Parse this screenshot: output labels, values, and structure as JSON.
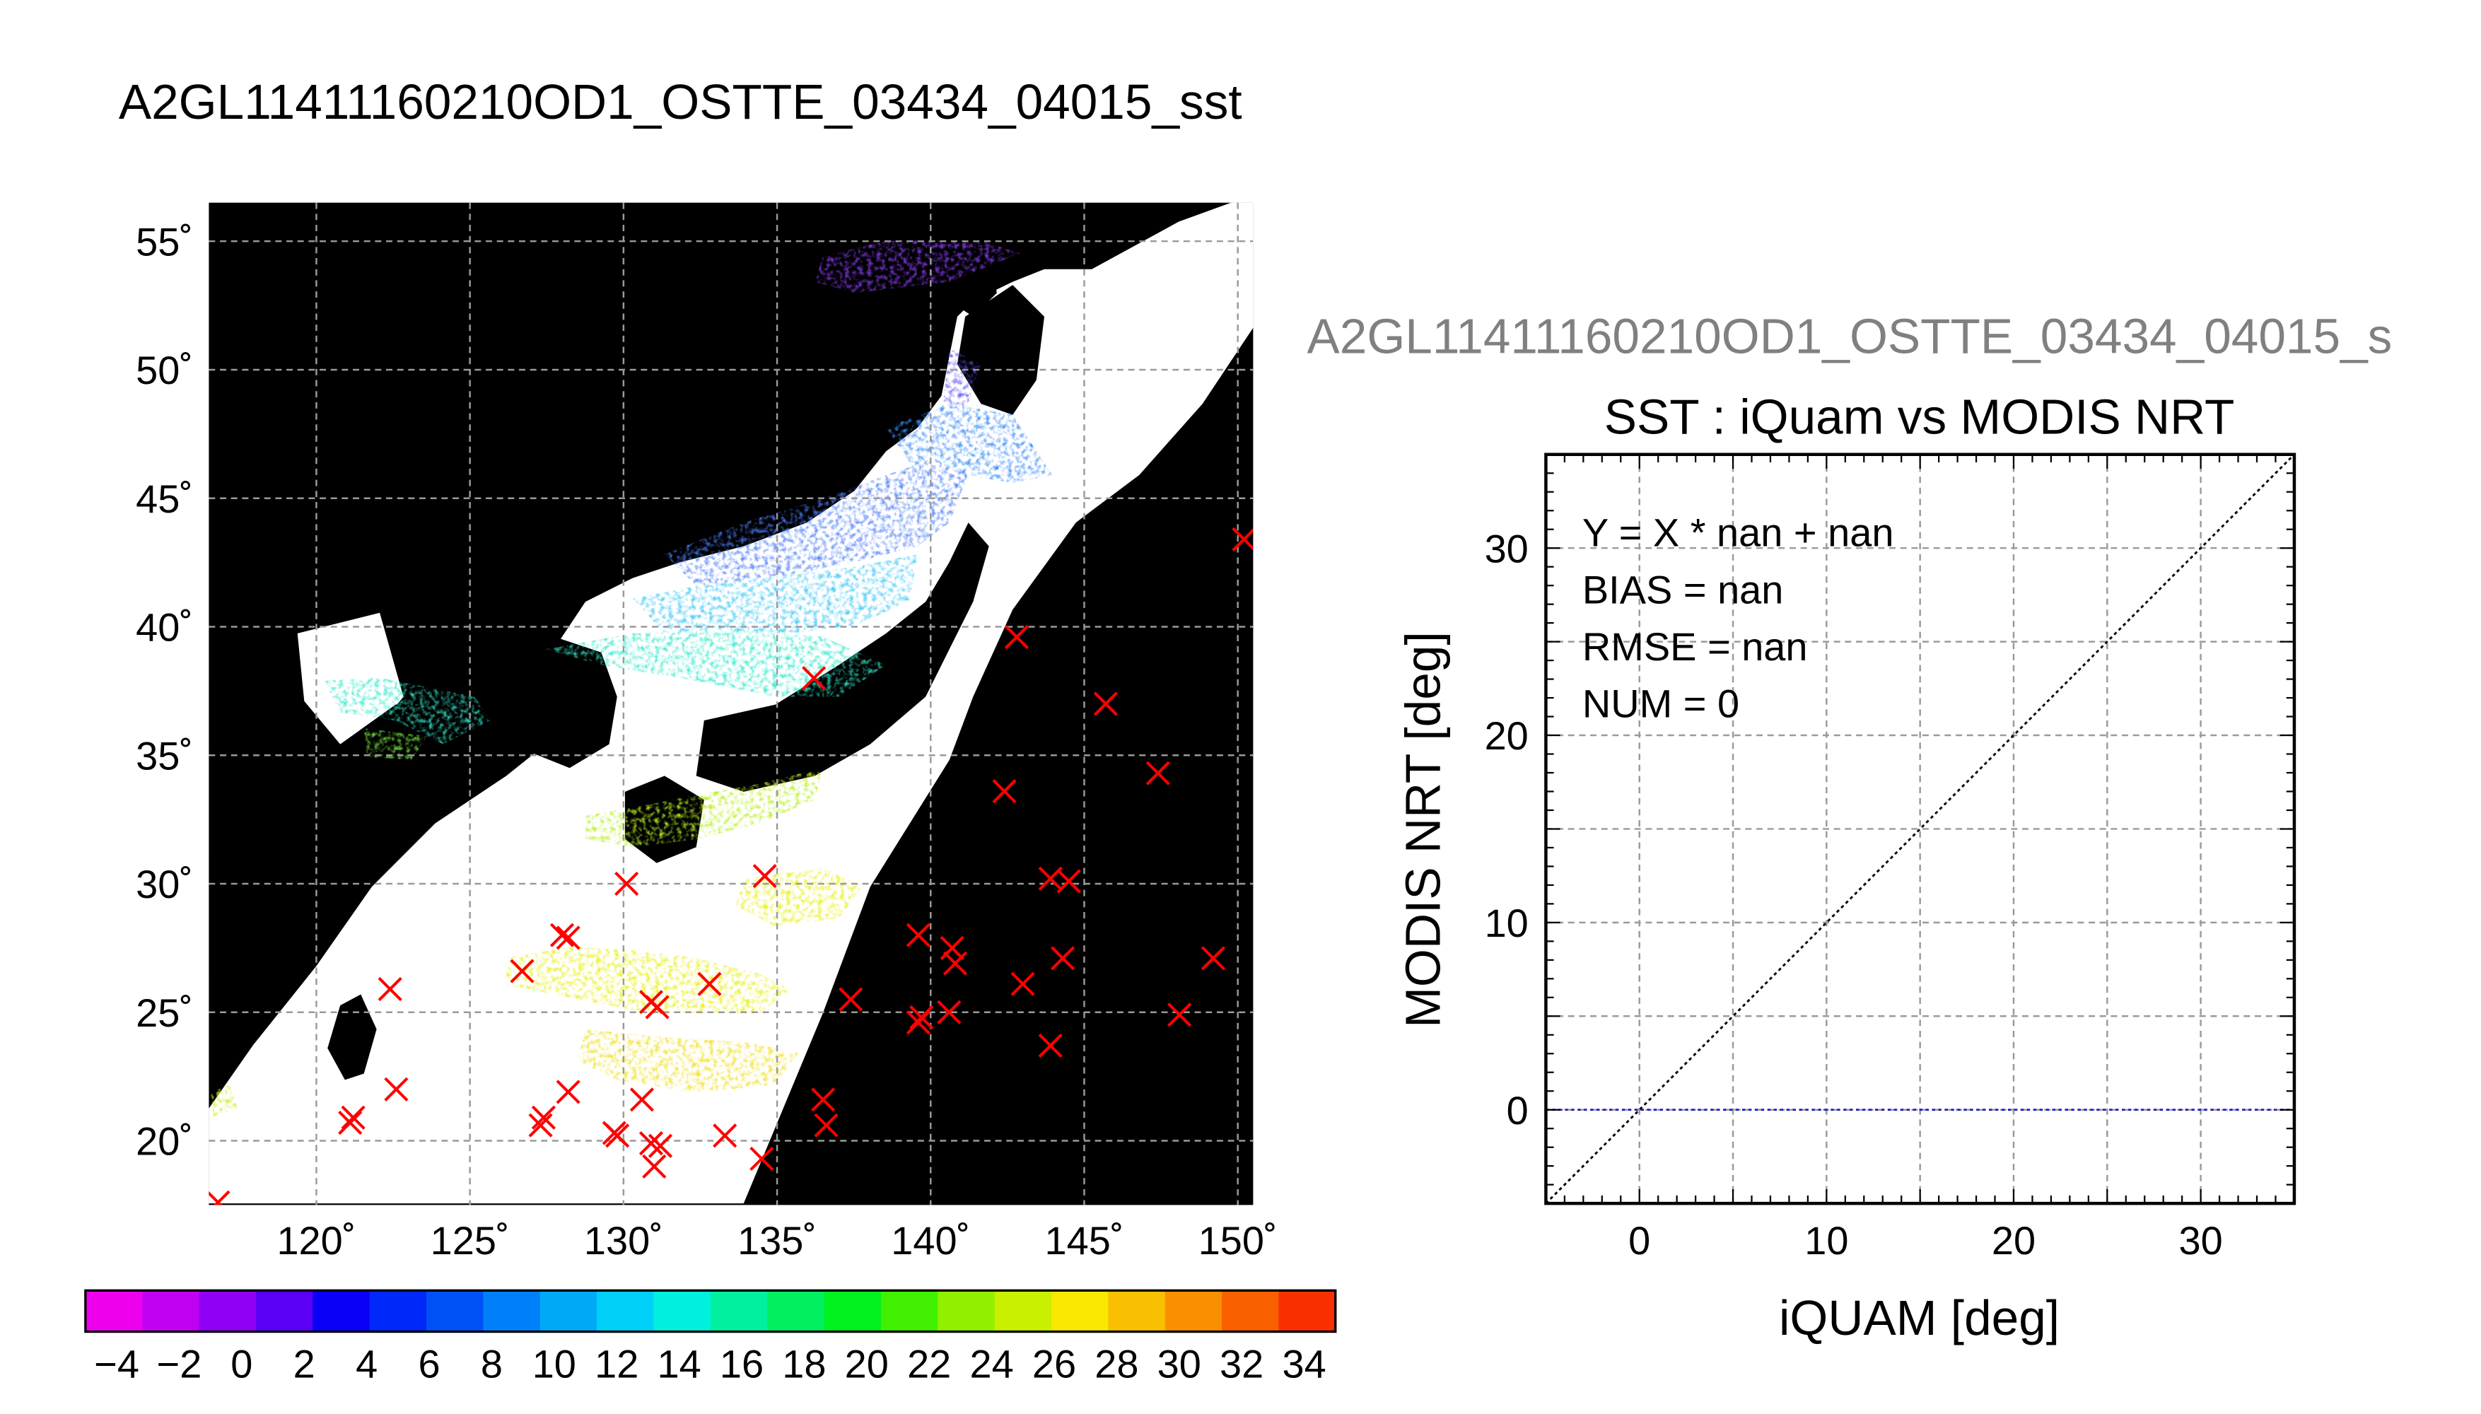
{
  "figure_title": "A2GL11411160210OD1_OSTTE_03434_04015_sst",
  "colors": {
    "background": "#ffffff",
    "map_background": "#000000",
    "land_cloud_fill": "#ffffff",
    "grid": "#9a9a9a",
    "marker": "#ff0000",
    "identity_line": "#000000",
    "zero_line": "#2020c0",
    "subtitle_gray": "#808080"
  },
  "chart_data": [
    {
      "type": "map",
      "lon_range": [
        116.5,
        150.5
      ],
      "lat_range": [
        17.5,
        56.5
      ],
      "lon_ticks": [
        120,
        125,
        130,
        135,
        140,
        145,
        150
      ],
      "lat_ticks": [
        20,
        25,
        30,
        35,
        40,
        45,
        50,
        55
      ],
      "lon_tick_labels": [
        "120˚",
        "125˚",
        "130˚",
        "135˚",
        "140˚",
        "145˚",
        "150˚"
      ],
      "lat_tick_labels": [
        "20˚",
        "25˚",
        "30˚",
        "35˚",
        "40˚",
        "45˚",
        "50˚",
        "55˚"
      ],
      "grid": true,
      "markers": [
        {
          "lon": 136.2,
          "lat": 38.0
        },
        {
          "lon": 142.8,
          "lat": 39.6
        },
        {
          "lon": 145.7,
          "lat": 37.0
        },
        {
          "lon": 147.4,
          "lat": 34.3
        },
        {
          "lon": 142.4,
          "lat": 33.6
        },
        {
          "lon": 134.6,
          "lat": 30.3
        },
        {
          "lon": 130.1,
          "lat": 30.0
        },
        {
          "lon": 143.9,
          "lat": 30.2
        },
        {
          "lon": 144.5,
          "lat": 30.1
        },
        {
          "lon": 139.6,
          "lat": 28.0
        },
        {
          "lon": 140.7,
          "lat": 27.5
        },
        {
          "lon": 140.8,
          "lat": 26.9
        },
        {
          "lon": 144.3,
          "lat": 27.1
        },
        {
          "lon": 149.2,
          "lat": 27.1
        },
        {
          "lon": 143.0,
          "lat": 26.1
        },
        {
          "lon": 128.2,
          "lat": 27.9
        },
        {
          "lon": 128.0,
          "lat": 28.0
        },
        {
          "lon": 126.7,
          "lat": 26.6
        },
        {
          "lon": 132.8,
          "lat": 26.1
        },
        {
          "lon": 130.9,
          "lat": 25.4
        },
        {
          "lon": 131.1,
          "lat": 25.2
        },
        {
          "lon": 137.4,
          "lat": 25.5
        },
        {
          "lon": 139.7,
          "lat": 24.8
        },
        {
          "lon": 139.6,
          "lat": 24.6
        },
        {
          "lon": 140.6,
          "lat": 25.0
        },
        {
          "lon": 148.1,
          "lat": 24.9
        },
        {
          "lon": 143.9,
          "lat": 23.7
        },
        {
          "lon": 122.4,
          "lat": 25.9
        },
        {
          "lon": 122.6,
          "lat": 22.0
        },
        {
          "lon": 121.2,
          "lat": 20.9
        },
        {
          "lon": 121.1,
          "lat": 20.7
        },
        {
          "lon": 127.4,
          "lat": 20.9
        },
        {
          "lon": 127.3,
          "lat": 20.6
        },
        {
          "lon": 128.2,
          "lat": 21.9
        },
        {
          "lon": 129.7,
          "lat": 20.3
        },
        {
          "lon": 129.8,
          "lat": 20.2
        },
        {
          "lon": 130.6,
          "lat": 21.6
        },
        {
          "lon": 130.9,
          "lat": 19.9
        },
        {
          "lon": 131.2,
          "lat": 19.8
        },
        {
          "lon": 131.0,
          "lat": 19.0
        },
        {
          "lon": 133.3,
          "lat": 20.2
        },
        {
          "lon": 134.5,
          "lat": 19.3
        },
        {
          "lon": 136.5,
          "lat": 21.6
        },
        {
          "lon": 136.6,
          "lat": 20.6
        },
        {
          "lon": 150.2,
          "lat": 43.4
        },
        {
          "lon": 116.8,
          "lat": 17.6
        }
      ]
    },
    {
      "type": "scatter",
      "title": "SST : iQuam vs MODIS NRT",
      "xlabel": "iQUAM [deg]",
      "ylabel": "MODIS NRT [deg]",
      "xlim": [
        -5,
        35
      ],
      "ylim": [
        -5,
        35
      ],
      "xticks": [
        0,
        10,
        20,
        30
      ],
      "yticks": [
        0,
        10,
        20,
        30
      ],
      "grid_step": 5,
      "grid": true,
      "annotations": [
        "Y = X * nan + nan",
        "BIAS = nan",
        "RMSE = nan",
        "NUM = 0"
      ],
      "points": [],
      "reference_lines": [
        "y = x",
        "y = 0"
      ]
    }
  ],
  "colorbar": {
    "min": -5,
    "max": 35,
    "step": 2,
    "tick_labels": [
      "−4",
      "−2",
      "0",
      "2",
      "4",
      "6",
      "8",
      "10",
      "12",
      "14",
      "16",
      "18",
      "20",
      "22",
      "24",
      "26",
      "28",
      "30",
      "32",
      "34"
    ],
    "colors": [
      "#ee00ee",
      "#c000f0",
      "#9000f4",
      "#5a00f4",
      "#0a00f8",
      "#0028f8",
      "#0050f8",
      "#0080f8",
      "#00a8f8",
      "#00d0f8",
      "#00f0e0",
      "#00f0a0",
      "#00f060",
      "#00f020",
      "#40f000",
      "#90f000",
      "#c8f000",
      "#f8e800",
      "#f8c000",
      "#f89000",
      "#f86000",
      "#f83000"
    ]
  },
  "scatter_subtitle": "A2GL11411160210OD1_OSTTE_03434_04015_s"
}
